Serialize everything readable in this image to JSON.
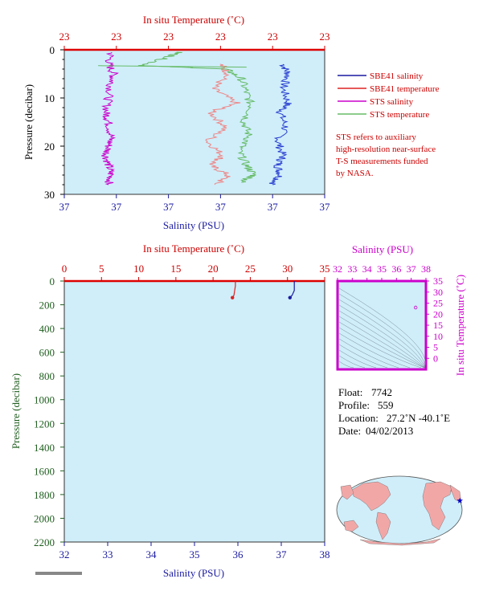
{
  "chart_data": [
    {
      "type": "line",
      "panel": "upper-profile",
      "xlabel_top": "In situ Temperature (˚C)",
      "xlabel_bottom": "Salinity (PSU)",
      "ylabel": "Pressure (decibar)",
      "top_ticks": [
        "23",
        "23",
        "23",
        "23",
        "23",
        "23"
      ],
      "bottom_ticks": [
        "37",
        "37",
        "37",
        "37",
        "37",
        "37"
      ],
      "y_ticks": [
        0,
        10,
        20,
        30
      ],
      "ylim": [
        30,
        0
      ],
      "xlim": [
        0,
        1
      ],
      "grid": false,
      "legend": {
        "placement": "right",
        "entries": [
          {
            "label": "SBE41 salinity",
            "color": "#1a1aa0"
          },
          {
            "label": "SBE41 temperature",
            "color": "#dd2222"
          },
          {
            "label": "STS salinity",
            "color": "#cc00cc"
          },
          {
            "label": "STS temperature",
            "color": "#66bb66"
          }
        ]
      },
      "note_lines": [
        "STS refers to auxiliary",
        "high-resolution near-surface",
        "T-S measurements funded",
        "by NASA."
      ],
      "series": [
        {
          "name": "SBE41 salinity",
          "color": "#2a3fd0",
          "x": [
            0.84,
            0.86,
            0.84,
            0.86,
            0.83,
            0.85,
            0.82,
            0.84,
            0.82,
            0.83,
            0.8
          ],
          "y": [
            3,
            5,
            8,
            11,
            13,
            16,
            19,
            22,
            24,
            26,
            28
          ]
        },
        {
          "name": "SBE41 temperature",
          "color": "#ee8888",
          "x": [
            0.6,
            0.63,
            0.57,
            0.66,
            0.56,
            0.62,
            0.55,
            0.61,
            0.56,
            0.63,
            0.58
          ],
          "y": [
            3,
            5,
            8,
            11,
            13,
            16,
            19,
            22,
            24,
            26,
            28
          ]
        },
        {
          "name": "STS salinity",
          "color": "#cc00cc",
          "x": [
            0.18,
            0.17,
            0.19,
            0.18,
            0.17,
            0.16,
            0.17,
            0.18,
            0.17,
            0.16,
            0.17,
            0.18,
            0.17
          ],
          "y": [
            0.5,
            3,
            5,
            7,
            10,
            13,
            15,
            18,
            20,
            22,
            24,
            26,
            28
          ]
        },
        {
          "name": "STS temperature",
          "color": "#66bb66",
          "x": [
            0.44,
            0.4,
            0.3,
            0.62,
            0.68,
            0.7,
            0.72,
            0.69,
            0.71,
            0.67,
            0.7,
            0.73,
            0.68
          ],
          "y": [
            0.5,
            1.5,
            3.3,
            4,
            6,
            9,
            12,
            15,
            18,
            21,
            24,
            26,
            27.5
          ]
        }
      ]
    },
    {
      "type": "line",
      "panel": "full-depth-profile",
      "xlabel_top": "In situ Temperature (˚C)",
      "xlabel_bottom": "Salinity (PSU)",
      "ylabel": "Pressure (decibar)",
      "top_ticks": [
        0,
        5,
        10,
        15,
        20,
        25,
        30,
        35
      ],
      "bottom_ticks": [
        32,
        33,
        34,
        35,
        36,
        37,
        38
      ],
      "y_ticks": [
        0,
        200,
        400,
        600,
        800,
        1000,
        1200,
        1400,
        1600,
        1800,
        2000,
        2200
      ],
      "xlim_temperature": [
        0,
        35
      ],
      "xlim_salinity": [
        32,
        38
      ],
      "ylim": [
        2200,
        0
      ],
      "grid": false,
      "series": [
        {
          "name": "temperature",
          "color": "#dd2222",
          "axis": "temperature",
          "x": [
            23.0,
            23.0,
            22.9,
            22.8,
            22.6
          ],
          "y": [
            0,
            40,
            80,
            120,
            140
          ]
        },
        {
          "name": "salinity",
          "color": "#1a1aa0",
          "axis": "salinity",
          "x": [
            37.3,
            37.3,
            37.3,
            37.25,
            37.2
          ],
          "y": [
            0,
            40,
            80,
            120,
            140
          ]
        }
      ]
    },
    {
      "type": "scatter",
      "panel": "ts-diagram",
      "xlabel": "Salinity (PSU)",
      "ylabel": "In situ Temperature (˚C)",
      "x_ticks": [
        32,
        33,
        34,
        35,
        36,
        37,
        38
      ],
      "y_ticks": [
        0,
        5,
        10,
        15,
        20,
        25,
        30,
        35
      ],
      "xlim": [
        32,
        38
      ],
      "ylim": [
        -5,
        35
      ],
      "points": [
        {
          "x": 37.3,
          "y": 23
        }
      ]
    }
  ],
  "info": {
    "float_label": "Float:",
    "float_value": "7742",
    "profile_label": "Profile:",
    "profile_value": "559",
    "location_label": "Location:",
    "location_value": "27.2˚N  -40.1˚E",
    "date_label": "Date:",
    "date_value": "04/02/2013"
  },
  "map": {
    "marker_lat": 27.2,
    "marker_lon": -40.1,
    "ocean_color": "#cfeefa",
    "land_color": "#f2a7a7",
    "marker_color": "#0000cc"
  },
  "colors": {
    "panel_bg": "#cfeefa",
    "temperature": "#cc0000",
    "salinity": "#1a1aa0",
    "pressure": "#1f5e1f",
    "ts": "#cc00cc"
  }
}
